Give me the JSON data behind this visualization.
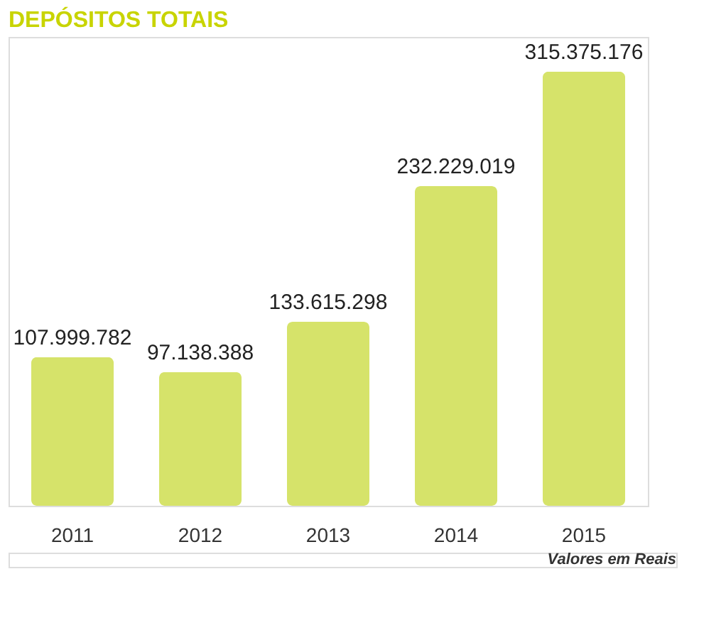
{
  "chart_data": {
    "type": "bar",
    "title": "DEPÓSITOS TOTAIS",
    "categories": [
      "2011",
      "2012",
      "2013",
      "2014",
      "2015"
    ],
    "values": [
      107999782,
      97138388,
      133615298,
      232229019,
      315375176
    ],
    "value_labels": [
      "107.999.782",
      "97.138.388",
      "133.615.298",
      "232.229.019",
      "315.375.176"
    ],
    "color": "#d6e36a",
    "annotations": [
      "Valores em Reais"
    ]
  }
}
